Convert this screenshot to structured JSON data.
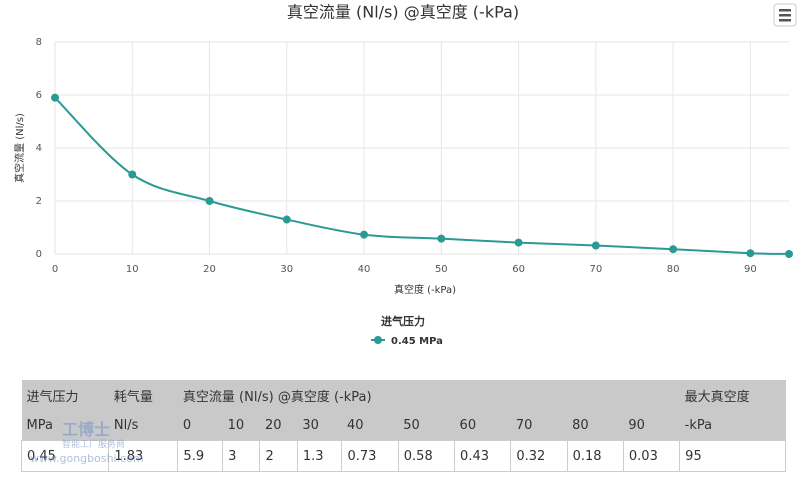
{
  "chart_data": {
    "type": "line",
    "title": "真空流量 (Nl/s) @真空度 (-kPa)",
    "x_label": "真空度 (-kPa)",
    "y_label": "真空流量 (Nl/s)",
    "legend_title": "进气压力",
    "x": [
      0,
      10,
      20,
      30,
      40,
      50,
      60,
      70,
      80,
      90,
      95
    ],
    "series": [
      {
        "name": "0.45 MPa",
        "color": "#2a9a94",
        "values": [
          5.9,
          3,
          2,
          1.3,
          0.73,
          0.58,
          0.43,
          0.32,
          0.18,
          0.03,
          0
        ]
      }
    ],
    "xlim": [
      0,
      95
    ],
    "xticks": [
      0,
      10,
      20,
      30,
      40,
      50,
      60,
      70,
      80,
      90
    ],
    "ylim": [
      0,
      8
    ],
    "yticks": [
      0,
      2,
      4,
      6,
      8
    ],
    "grid": true
  },
  "table": {
    "header": [
      [
        "进气压力",
        "耗气量",
        "真空流量 (Nl/s) @真空度 (-kPa)",
        "最大真空度"
      ],
      [
        "MPa",
        "Nl/s",
        "0",
        "10",
        "20",
        "30",
        "40",
        "50",
        "60",
        "70",
        "80",
        "90",
        "-kPa"
      ]
    ],
    "rows": [
      [
        "0.45",
        "1.83",
        "5.9",
        "3",
        "2",
        "1.3",
        "0.73",
        "0.58",
        "0.43",
        "0.32",
        "0.18",
        "0.03",
        "95"
      ]
    ]
  },
  "watermark": {
    "brand": "工博士",
    "slogan": "智能工厂服务商",
    "url": "www.gongboshi.com"
  }
}
